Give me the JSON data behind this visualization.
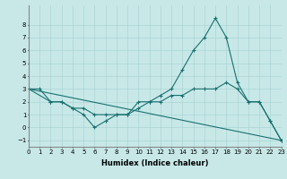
{
  "xlabel": "Humidex (Indice chaleur)",
  "background_color": "#c8e8e8",
  "grid_color": "#aad4d4",
  "line_color": "#1a7070",
  "xlim": [
    0,
    23
  ],
  "ylim": [
    -1.5,
    9.5
  ],
  "xticks": [
    0,
    1,
    2,
    3,
    4,
    5,
    6,
    7,
    8,
    9,
    10,
    11,
    12,
    13,
    14,
    15,
    16,
    17,
    18,
    19,
    20,
    21,
    22,
    23
  ],
  "yticks": [
    -1,
    0,
    1,
    2,
    3,
    4,
    5,
    6,
    7,
    8
  ],
  "series": [
    {
      "x": [
        0,
        1,
        2,
        3,
        4,
        5,
        6,
        7,
        8,
        9,
        10,
        11,
        12,
        13,
        14,
        15,
        16,
        17,
        18,
        19,
        20,
        21,
        22,
        23
      ],
      "y": [
        3,
        3,
        2,
        2,
        1.5,
        1,
        0,
        0.5,
        1,
        1,
        1.5,
        2,
        2.5,
        3,
        4.5,
        6,
        7,
        8.5,
        7,
        3.5,
        2,
        2,
        0.5,
        -1
      ]
    },
    {
      "x": [
        0,
        23
      ],
      "y": [
        3,
        -1
      ]
    },
    {
      "x": [
        0,
        2,
        3,
        4,
        5,
        6,
        7,
        8,
        9,
        10,
        11,
        12,
        13,
        14,
        15,
        16,
        17,
        18,
        19,
        20,
        21,
        22,
        23
      ],
      "y": [
        3,
        2,
        2,
        1.5,
        1.5,
        1,
        1,
        1,
        1,
        2,
        2,
        2,
        2.5,
        2.5,
        3,
        3,
        3,
        3.5,
        3,
        2,
        2,
        0.5,
        -1
      ]
    }
  ]
}
